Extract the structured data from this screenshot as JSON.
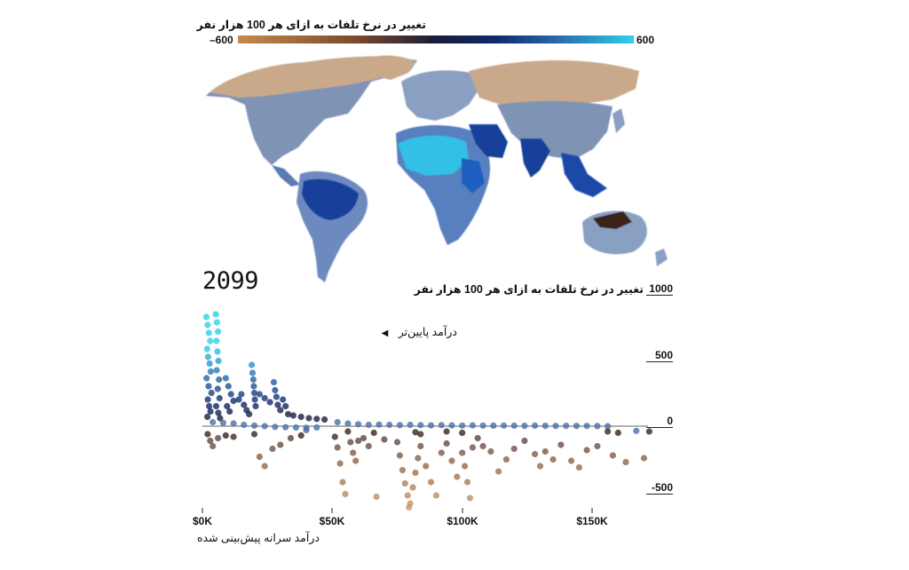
{
  "colors": {
    "low_end": "#c58a4f",
    "mid_dark": "#3a2418",
    "navy": "#102a6b",
    "mid_blue": "#4a6fa5",
    "high_end": "#2fd0ea",
    "land_neutral": "#c9a98a",
    "zero_line": "#555555"
  },
  "legend": {
    "title": "تغییر در نرخ تلفات به ازای هر 100 هزار نفر",
    "min_label": "–600",
    "max_label": "600"
  },
  "map": {
    "icon": "world-map-choropleth"
  },
  "chart_data": {
    "type": "scatter",
    "title": "2099",
    "ylabel": "تغییر در نرخ تلفات به ازای هر 100 هزار نفر",
    "xlabel": "درآمد سرانه پیش‌بینی شده",
    "annotation": "درآمد پایین‌تر",
    "xlim": [
      0,
      180000
    ],
    "ylim": [
      -650,
      1000
    ],
    "x_ticks": [
      {
        "value": 0,
        "label": "$0K"
      },
      {
        "value": 50000,
        "label": "$50K"
      },
      {
        "value": 100000,
        "label": "$100K"
      },
      {
        "value": 150000,
        "label": "$150K"
      }
    ],
    "y_ticks": [
      {
        "value": 1000,
        "label": "1000"
      },
      {
        "value": 500,
        "label": "500"
      },
      {
        "value": 0,
        "label": "0"
      },
      {
        "value": -500,
        "label": "-500"
      }
    ],
    "grid": false,
    "color_scale": {
      "min": -600,
      "max": 600
    },
    "points": [
      {
        "x": 1500,
        "y": 820
      },
      {
        "x": 2000,
        "y": 760
      },
      {
        "x": 2500,
        "y": 700
      },
      {
        "x": 3000,
        "y": 640
      },
      {
        "x": 1800,
        "y": 580
      },
      {
        "x": 2200,
        "y": 520
      },
      {
        "x": 2800,
        "y": 470
      },
      {
        "x": 3200,
        "y": 410
      },
      {
        "x": 1600,
        "y": 360
      },
      {
        "x": 2400,
        "y": 300
      },
      {
        "x": 3500,
        "y": 250
      },
      {
        "x": 2100,
        "y": 200
      },
      {
        "x": 2600,
        "y": 150
      },
      {
        "x": 3100,
        "y": 110
      },
      {
        "x": 1900,
        "y": 70
      },
      {
        "x": 5200,
        "y": 840
      },
      {
        "x": 5600,
        "y": 780
      },
      {
        "x": 6000,
        "y": 710
      },
      {
        "x": 5400,
        "y": 640
      },
      {
        "x": 5800,
        "y": 560
      },
      {
        "x": 6200,
        "y": 490
      },
      {
        "x": 5500,
        "y": 420
      },
      {
        "x": 6400,
        "y": 350
      },
      {
        "x": 5900,
        "y": 280
      },
      {
        "x": 6600,
        "y": 210
      },
      {
        "x": 5300,
        "y": 150
      },
      {
        "x": 6100,
        "y": 100
      },
      {
        "x": 6800,
        "y": 60
      },
      {
        "x": 9000,
        "y": 360
      },
      {
        "x": 10000,
        "y": 300
      },
      {
        "x": 11000,
        "y": 240
      },
      {
        "x": 12000,
        "y": 190
      },
      {
        "x": 9500,
        "y": 150
      },
      {
        "x": 10500,
        "y": 110
      },
      {
        "x": 14000,
        "y": 200
      },
      {
        "x": 15000,
        "y": 240
      },
      {
        "x": 16000,
        "y": 160
      },
      {
        "x": 17000,
        "y": 120
      },
      {
        "x": 18000,
        "y": 90
      },
      {
        "x": 19000,
        "y": 460
      },
      {
        "x": 19300,
        "y": 400
      },
      {
        "x": 19600,
        "y": 350
      },
      {
        "x": 19800,
        "y": 300
      },
      {
        "x": 20000,
        "y": 250
      },
      {
        "x": 20200,
        "y": 200
      },
      {
        "x": 20500,
        "y": 150
      },
      {
        "x": 22000,
        "y": 240
      },
      {
        "x": 24000,
        "y": 210
      },
      {
        "x": 26000,
        "y": 180
      },
      {
        "x": 27500,
        "y": 330
      },
      {
        "x": 28000,
        "y": 270
      },
      {
        "x": 28500,
        "y": 220
      },
      {
        "x": 29000,
        "y": 160
      },
      {
        "x": 30000,
        "y": 120
      },
      {
        "x": 31000,
        "y": 200
      },
      {
        "x": 32000,
        "y": 150
      },
      {
        "x": 33000,
        "y": 90
      },
      {
        "x": 35000,
        "y": 80
      },
      {
        "x": 38000,
        "y": 70
      },
      {
        "x": 41000,
        "y": 60
      },
      {
        "x": 44000,
        "y": 55
      },
      {
        "x": 47000,
        "y": 50
      },
      {
        "x": 4000,
        "y": 30
      },
      {
        "x": 8000,
        "y": 25
      },
      {
        "x": 12000,
        "y": 20
      },
      {
        "x": 16000,
        "y": 10
      },
      {
        "x": 20000,
        "y": 5
      },
      {
        "x": 24000,
        "y": 0
      },
      {
        "x": 28000,
        "y": -5
      },
      {
        "x": 32000,
        "y": -8
      },
      {
        "x": 36000,
        "y": -10
      },
      {
        "x": 40000,
        "y": -12
      },
      {
        "x": 44000,
        "y": -10
      },
      {
        "x": 52000,
        "y": 30
      },
      {
        "x": 56000,
        "y": 20
      },
      {
        "x": 60000,
        "y": 15
      },
      {
        "x": 64000,
        "y": 10
      },
      {
        "x": 68000,
        "y": 12
      },
      {
        "x": 72000,
        "y": 10
      },
      {
        "x": 76000,
        "y": 8
      },
      {
        "x": 80000,
        "y": 10
      },
      {
        "x": 84000,
        "y": 8
      },
      {
        "x": 88000,
        "y": 6
      },
      {
        "x": 92000,
        "y": 8
      },
      {
        "x": 96000,
        "y": 6
      },
      {
        "x": 100000,
        "y": 5
      },
      {
        "x": 104000,
        "y": 6
      },
      {
        "x": 108000,
        "y": 5
      },
      {
        "x": 112000,
        "y": 4
      },
      {
        "x": 116000,
        "y": 5
      },
      {
        "x": 120000,
        "y": 4
      },
      {
        "x": 124000,
        "y": 3
      },
      {
        "x": 128000,
        "y": 4
      },
      {
        "x": 132000,
        "y": 3
      },
      {
        "x": 136000,
        "y": 2
      },
      {
        "x": 140000,
        "y": 3
      },
      {
        "x": 144000,
        "y": 2
      },
      {
        "x": 148000,
        "y": 2
      },
      {
        "x": 152000,
        "y": 1
      },
      {
        "x": 156000,
        "y": 0
      },
      {
        "x": 40000,
        "y": -30
      },
      {
        "x": 56000,
        "y": -40
      },
      {
        "x": 66000,
        "y": -50
      },
      {
        "x": 82000,
        "y": -45
      },
      {
        "x": 84000,
        "y": -60
      },
      {
        "x": 94000,
        "y": -40
      },
      {
        "x": 100000,
        "y": -50
      },
      {
        "x": 156000,
        "y": -40
      },
      {
        "x": 160000,
        "y": -50
      },
      {
        "x": 167000,
        "y": -35
      },
      {
        "x": 172000,
        "y": -40
      },
      {
        "x": 2000,
        "y": -60
      },
      {
        "x": 3000,
        "y": -110
      },
      {
        "x": 4000,
        "y": -150
      },
      {
        "x": 6000,
        "y": -90
      },
      {
        "x": 9000,
        "y": -70
      },
      {
        "x": 12000,
        "y": -80
      },
      {
        "x": 20000,
        "y": -60
      },
      {
        "x": 22000,
        "y": -230
      },
      {
        "x": 24000,
        "y": -300
      },
      {
        "x": 27000,
        "y": -170
      },
      {
        "x": 30000,
        "y": -140
      },
      {
        "x": 34000,
        "y": -90
      },
      {
        "x": 38000,
        "y": -70
      },
      {
        "x": 51000,
        "y": -80
      },
      {
        "x": 52000,
        "y": -160
      },
      {
        "x": 53000,
        "y": -280
      },
      {
        "x": 54000,
        "y": -420
      },
      {
        "x": 55000,
        "y": -510
      },
      {
        "x": 57000,
        "y": -120
      },
      {
        "x": 58000,
        "y": -200
      },
      {
        "x": 59000,
        "y": -260
      },
      {
        "x": 60000,
        "y": -110
      },
      {
        "x": 62000,
        "y": -90
      },
      {
        "x": 64000,
        "y": -150
      },
      {
        "x": 67000,
        "y": -530
      },
      {
        "x": 70000,
        "y": -100
      },
      {
        "x": 75000,
        "y": -120
      },
      {
        "x": 76000,
        "y": -220
      },
      {
        "x": 77000,
        "y": -330
      },
      {
        "x": 78000,
        "y": -430
      },
      {
        "x": 79000,
        "y": -520
      },
      {
        "x": 79500,
        "y": -610
      },
      {
        "x": 80000,
        "y": -580
      },
      {
        "x": 81000,
        "y": -460
      },
      {
        "x": 82000,
        "y": -350
      },
      {
        "x": 83000,
        "y": -240
      },
      {
        "x": 84000,
        "y": -150
      },
      {
        "x": 86000,
        "y": -300
      },
      {
        "x": 88000,
        "y": -420
      },
      {
        "x": 90000,
        "y": -520
      },
      {
        "x": 92000,
        "y": -200
      },
      {
        "x": 94000,
        "y": -130
      },
      {
        "x": 96000,
        "y": -260
      },
      {
        "x": 98000,
        "y": -380
      },
      {
        "x": 100000,
        "y": -200
      },
      {
        "x": 101000,
        "y": -300
      },
      {
        "x": 102000,
        "y": -420
      },
      {
        "x": 103000,
        "y": -540
      },
      {
        "x": 104000,
        "y": -160
      },
      {
        "x": 106000,
        "y": -90
      },
      {
        "x": 108000,
        "y": -150
      },
      {
        "x": 111000,
        "y": -190
      },
      {
        "x": 114000,
        "y": -340
      },
      {
        "x": 117000,
        "y": -250
      },
      {
        "x": 120000,
        "y": -170
      },
      {
        "x": 124000,
        "y": -110
      },
      {
        "x": 128000,
        "y": -210
      },
      {
        "x": 130000,
        "y": -300
      },
      {
        "x": 132000,
        "y": -190
      },
      {
        "x": 135000,
        "y": -250
      },
      {
        "x": 138000,
        "y": -140
      },
      {
        "x": 142000,
        "y": -260
      },
      {
        "x": 145000,
        "y": -310
      },
      {
        "x": 148000,
        "y": -180
      },
      {
        "x": 152000,
        "y": -150
      },
      {
        "x": 158000,
        "y": -220
      },
      {
        "x": 163000,
        "y": -270
      },
      {
        "x": 170000,
        "y": -240
      }
    ]
  }
}
